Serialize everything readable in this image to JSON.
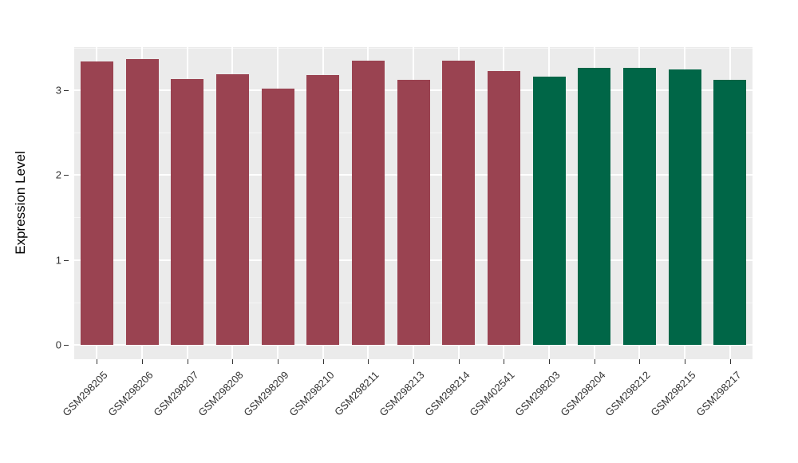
{
  "chart_data": {
    "type": "bar",
    "title": "",
    "xlabel": "",
    "ylabel": "Expression Level",
    "categories": [
      "GSM298205",
      "GSM298206",
      "GSM298207",
      "GSM298208",
      "GSM298209",
      "GSM298210",
      "GSM298211",
      "GSM298213",
      "GSM298214",
      "GSM402541",
      "GSM298203",
      "GSM298204",
      "GSM298212",
      "GSM298215",
      "GSM298217"
    ],
    "values": [
      3.34,
      3.36,
      3.13,
      3.19,
      3.02,
      3.18,
      3.35,
      3.12,
      3.35,
      3.22,
      3.16,
      3.26,
      3.26,
      3.24,
      3.12
    ],
    "bar_colors": [
      "#9A4351",
      "#9A4351",
      "#9A4351",
      "#9A4351",
      "#9A4351",
      "#9A4351",
      "#9A4351",
      "#9A4351",
      "#9A4351",
      "#9A4351",
      "#006647",
      "#006647",
      "#006647",
      "#006647",
      "#006647"
    ],
    "groups": [
      {
        "color": "#9A4351",
        "first_category": "GSM298205",
        "last_category": "GSM402541",
        "count": 10
      },
      {
        "color": "#006647",
        "first_category": "GSM298203",
        "last_category": "GSM298217",
        "count": 5
      }
    ],
    "ylim": [
      -0.17,
      3.53
    ],
    "yticks": [
      0,
      1,
      2,
      3
    ],
    "ytick_labels": [
      "0",
      "1",
      "2",
      "3"
    ],
    "minor_ticks": [
      0.5,
      1.5,
      2.5,
      3.5
    ],
    "x_label_rotation": 45,
    "grid": true,
    "legend": "none",
    "panel_background": "#EBEBEB",
    "grid_major_color": "#FFFFFF",
    "grid_minor_color": "#F6F6F6",
    "tick_text_color": "#333333"
  }
}
